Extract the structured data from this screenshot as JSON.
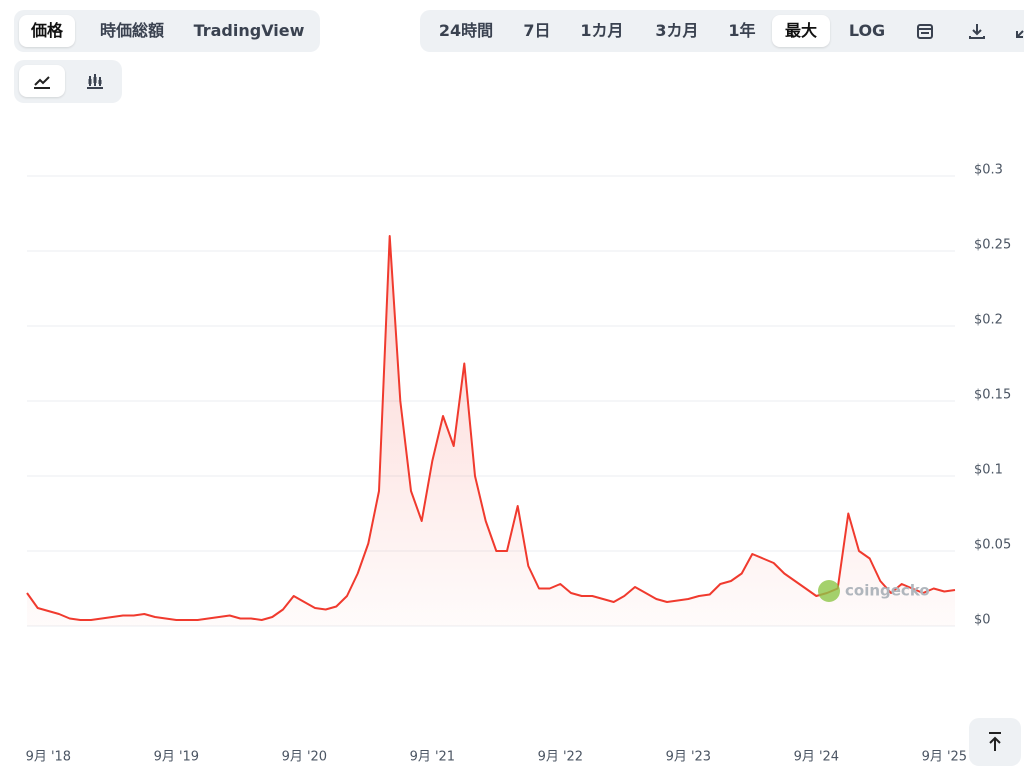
{
  "ui": {
    "tabs": [
      "価格",
      "時価総額",
      "TradingView"
    ],
    "ranges": [
      "24時間",
      "7日",
      "1カ月",
      "3カ月",
      "1年",
      "最大",
      "LOG"
    ]
  },
  "chart_data": {
    "type": "line",
    "x": [
      "2018-07",
      "2018-08",
      "2018-09",
      "2018-10",
      "2018-11",
      "2018-12",
      "2019-01",
      "2019-02",
      "2019-03",
      "2019-04",
      "2019-05",
      "2019-06",
      "2019-07",
      "2019-08",
      "2019-09",
      "2019-10",
      "2019-11",
      "2019-12",
      "2020-01",
      "2020-02",
      "2020-03",
      "2020-04",
      "2020-05",
      "2020-06",
      "2020-07",
      "2020-08",
      "2020-09",
      "2020-10",
      "2020-11",
      "2020-12",
      "2021-01",
      "2021-02",
      "2021-03",
      "2021-04",
      "2021-05",
      "2021-06",
      "2021-07",
      "2021-08",
      "2021-09",
      "2021-10",
      "2021-11",
      "2021-12",
      "2022-01",
      "2022-02",
      "2022-03",
      "2022-04",
      "2022-05",
      "2022-06",
      "2022-07",
      "2022-08",
      "2022-09",
      "2022-10",
      "2022-11",
      "2022-12",
      "2023-01",
      "2023-02",
      "2023-03",
      "2023-04",
      "2023-05",
      "2023-06",
      "2023-07",
      "2023-08",
      "2023-09",
      "2023-10",
      "2023-11",
      "2023-12",
      "2024-01",
      "2024-02",
      "2024-03",
      "2024-04",
      "2024-05",
      "2024-06",
      "2024-07",
      "2024-08",
      "2024-09",
      "2024-10",
      "2024-11",
      "2024-12",
      "2025-01",
      "2025-02",
      "2025-03",
      "2025-04",
      "2025-05",
      "2025-06",
      "2025-07",
      "2025-08",
      "2025-09",
      "2025-10"
    ],
    "series": [
      {
        "color": "#f03a2e",
        "values": [
          0.022,
          0.012,
          0.01,
          0.008,
          0.005,
          0.004,
          0.004,
          0.005,
          0.006,
          0.007,
          0.007,
          0.008,
          0.006,
          0.005,
          0.004,
          0.004,
          0.004,
          0.005,
          0.006,
          0.007,
          0.005,
          0.005,
          0.004,
          0.006,
          0.011,
          0.02,
          0.016,
          0.012,
          0.011,
          0.013,
          0.02,
          0.035,
          0.055,
          0.09,
          0.26,
          0.15,
          0.09,
          0.07,
          0.11,
          0.14,
          0.12,
          0.175,
          0.1,
          0.07,
          0.05,
          0.05,
          0.08,
          0.04,
          0.025,
          0.025,
          0.028,
          0.022,
          0.02,
          0.02,
          0.018,
          0.016,
          0.02,
          0.026,
          0.022,
          0.018,
          0.016,
          0.017,
          0.018,
          0.02,
          0.021,
          0.028,
          0.03,
          0.035,
          0.048,
          0.045,
          0.042,
          0.035,
          0.03,
          0.025,
          0.02,
          0.022,
          0.025,
          0.075,
          0.05,
          0.045,
          0.03,
          0.022,
          0.028,
          0.025,
          0.022,
          0.025,
          0.023,
          0.024
        ]
      }
    ],
    "ylim": [
      0,
      0.3
    ],
    "yticks": [
      {
        "value": 0,
        "label": "$0"
      },
      {
        "value": 0.05,
        "label": "$0.05"
      },
      {
        "value": 0.1,
        "label": "$0.1"
      },
      {
        "value": 0.15,
        "label": "$0.15"
      },
      {
        "value": 0.2,
        "label": "$0.2"
      },
      {
        "value": 0.25,
        "label": "$0.25"
      },
      {
        "value": 0.3,
        "label": "$0.3"
      }
    ],
    "xticks": [
      {
        "value": "2018-09",
        "label": "9月 '18"
      },
      {
        "value": "2019-09",
        "label": "9月 '19"
      },
      {
        "value": "2020-09",
        "label": "9月 '20"
      },
      {
        "value": "2021-09",
        "label": "9月 '21"
      },
      {
        "value": "2022-09",
        "label": "9月 '22"
      },
      {
        "value": "2023-09",
        "label": "9月 '23"
      },
      {
        "value": "2024-09",
        "label": "9月 '24"
      },
      {
        "value": "2025-09",
        "label": "9月 '25"
      }
    ],
    "grid": true,
    "watermark": "coingecko"
  }
}
